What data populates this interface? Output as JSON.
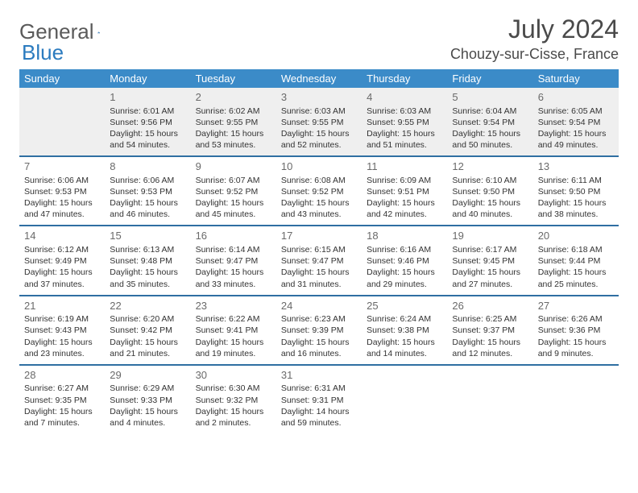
{
  "logo": {
    "text1": "General",
    "text2": "Blue"
  },
  "title": "July 2024",
  "subtitle": "Chouzy-sur-Cisse, France",
  "dayHeaders": [
    "Sunday",
    "Monday",
    "Tuesday",
    "Wednesday",
    "Thursday",
    "Friday",
    "Saturday"
  ],
  "colors": {
    "headerBg": "#3b8bc8",
    "headerText": "#ffffff",
    "rowBorder": "#2f6fa2",
    "firstWeekBg": "#efefef",
    "bodyText": "#333333",
    "titleText": "#4a4a4a",
    "logoGray": "#5a5a5a",
    "logoBlue": "#2b7bbf"
  },
  "typography": {
    "titleSize": 32,
    "subtitleSize": 18,
    "headerSize": 13,
    "dayNumSize": 13,
    "detailSize": 10.5,
    "logoSize": 26
  },
  "weeks": [
    [
      null,
      {
        "n": "1",
        "r": "Sunrise: 6:01 AM",
        "s": "Sunset: 9:56 PM",
        "d1": "Daylight: 15 hours",
        "d2": "and 54 minutes."
      },
      {
        "n": "2",
        "r": "Sunrise: 6:02 AM",
        "s": "Sunset: 9:55 PM",
        "d1": "Daylight: 15 hours",
        "d2": "and 53 minutes."
      },
      {
        "n": "3",
        "r": "Sunrise: 6:03 AM",
        "s": "Sunset: 9:55 PM",
        "d1": "Daylight: 15 hours",
        "d2": "and 52 minutes."
      },
      {
        "n": "4",
        "r": "Sunrise: 6:03 AM",
        "s": "Sunset: 9:55 PM",
        "d1": "Daylight: 15 hours",
        "d2": "and 51 minutes."
      },
      {
        "n": "5",
        "r": "Sunrise: 6:04 AM",
        "s": "Sunset: 9:54 PM",
        "d1": "Daylight: 15 hours",
        "d2": "and 50 minutes."
      },
      {
        "n": "6",
        "r": "Sunrise: 6:05 AM",
        "s": "Sunset: 9:54 PM",
        "d1": "Daylight: 15 hours",
        "d2": "and 49 minutes."
      }
    ],
    [
      {
        "n": "7",
        "r": "Sunrise: 6:06 AM",
        "s": "Sunset: 9:53 PM",
        "d1": "Daylight: 15 hours",
        "d2": "and 47 minutes."
      },
      {
        "n": "8",
        "r": "Sunrise: 6:06 AM",
        "s": "Sunset: 9:53 PM",
        "d1": "Daylight: 15 hours",
        "d2": "and 46 minutes."
      },
      {
        "n": "9",
        "r": "Sunrise: 6:07 AM",
        "s": "Sunset: 9:52 PM",
        "d1": "Daylight: 15 hours",
        "d2": "and 45 minutes."
      },
      {
        "n": "10",
        "r": "Sunrise: 6:08 AM",
        "s": "Sunset: 9:52 PM",
        "d1": "Daylight: 15 hours",
        "d2": "and 43 minutes."
      },
      {
        "n": "11",
        "r": "Sunrise: 6:09 AM",
        "s": "Sunset: 9:51 PM",
        "d1": "Daylight: 15 hours",
        "d2": "and 42 minutes."
      },
      {
        "n": "12",
        "r": "Sunrise: 6:10 AM",
        "s": "Sunset: 9:50 PM",
        "d1": "Daylight: 15 hours",
        "d2": "and 40 minutes."
      },
      {
        "n": "13",
        "r": "Sunrise: 6:11 AM",
        "s": "Sunset: 9:50 PM",
        "d1": "Daylight: 15 hours",
        "d2": "and 38 minutes."
      }
    ],
    [
      {
        "n": "14",
        "r": "Sunrise: 6:12 AM",
        "s": "Sunset: 9:49 PM",
        "d1": "Daylight: 15 hours",
        "d2": "and 37 minutes."
      },
      {
        "n": "15",
        "r": "Sunrise: 6:13 AM",
        "s": "Sunset: 9:48 PM",
        "d1": "Daylight: 15 hours",
        "d2": "and 35 minutes."
      },
      {
        "n": "16",
        "r": "Sunrise: 6:14 AM",
        "s": "Sunset: 9:47 PM",
        "d1": "Daylight: 15 hours",
        "d2": "and 33 minutes."
      },
      {
        "n": "17",
        "r": "Sunrise: 6:15 AM",
        "s": "Sunset: 9:47 PM",
        "d1": "Daylight: 15 hours",
        "d2": "and 31 minutes."
      },
      {
        "n": "18",
        "r": "Sunrise: 6:16 AM",
        "s": "Sunset: 9:46 PM",
        "d1": "Daylight: 15 hours",
        "d2": "and 29 minutes."
      },
      {
        "n": "19",
        "r": "Sunrise: 6:17 AM",
        "s": "Sunset: 9:45 PM",
        "d1": "Daylight: 15 hours",
        "d2": "and 27 minutes."
      },
      {
        "n": "20",
        "r": "Sunrise: 6:18 AM",
        "s": "Sunset: 9:44 PM",
        "d1": "Daylight: 15 hours",
        "d2": "and 25 minutes."
      }
    ],
    [
      {
        "n": "21",
        "r": "Sunrise: 6:19 AM",
        "s": "Sunset: 9:43 PM",
        "d1": "Daylight: 15 hours",
        "d2": "and 23 minutes."
      },
      {
        "n": "22",
        "r": "Sunrise: 6:20 AM",
        "s": "Sunset: 9:42 PM",
        "d1": "Daylight: 15 hours",
        "d2": "and 21 minutes."
      },
      {
        "n": "23",
        "r": "Sunrise: 6:22 AM",
        "s": "Sunset: 9:41 PM",
        "d1": "Daylight: 15 hours",
        "d2": "and 19 minutes."
      },
      {
        "n": "24",
        "r": "Sunrise: 6:23 AM",
        "s": "Sunset: 9:39 PM",
        "d1": "Daylight: 15 hours",
        "d2": "and 16 minutes."
      },
      {
        "n": "25",
        "r": "Sunrise: 6:24 AM",
        "s": "Sunset: 9:38 PM",
        "d1": "Daylight: 15 hours",
        "d2": "and 14 minutes."
      },
      {
        "n": "26",
        "r": "Sunrise: 6:25 AM",
        "s": "Sunset: 9:37 PM",
        "d1": "Daylight: 15 hours",
        "d2": "and 12 minutes."
      },
      {
        "n": "27",
        "r": "Sunrise: 6:26 AM",
        "s": "Sunset: 9:36 PM",
        "d1": "Daylight: 15 hours",
        "d2": "and 9 minutes."
      }
    ],
    [
      {
        "n": "28",
        "r": "Sunrise: 6:27 AM",
        "s": "Sunset: 9:35 PM",
        "d1": "Daylight: 15 hours",
        "d2": "and 7 minutes."
      },
      {
        "n": "29",
        "r": "Sunrise: 6:29 AM",
        "s": "Sunset: 9:33 PM",
        "d1": "Daylight: 15 hours",
        "d2": "and 4 minutes."
      },
      {
        "n": "30",
        "r": "Sunrise: 6:30 AM",
        "s": "Sunset: 9:32 PM",
        "d1": "Daylight: 15 hours",
        "d2": "and 2 minutes."
      },
      {
        "n": "31",
        "r": "Sunrise: 6:31 AM",
        "s": "Sunset: 9:31 PM",
        "d1": "Daylight: 14 hours",
        "d2": "and 59 minutes."
      },
      null,
      null,
      null
    ]
  ]
}
